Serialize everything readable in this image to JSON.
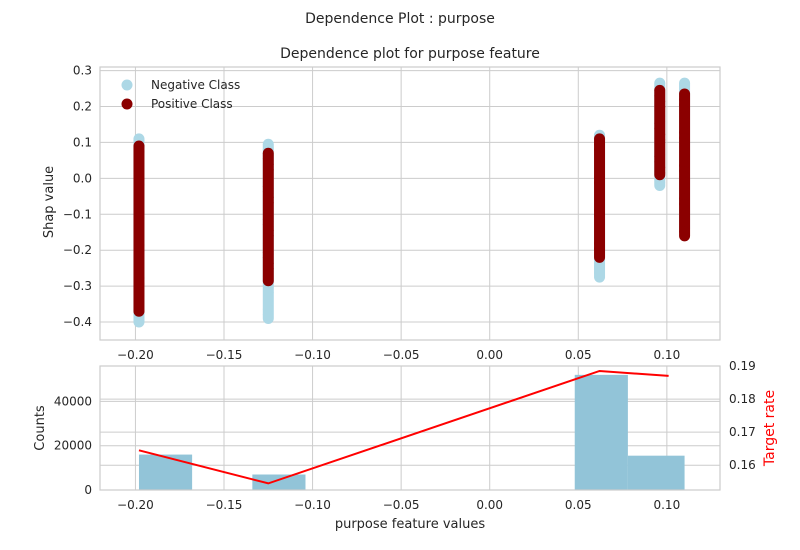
{
  "figure": {
    "suptitle": "Dependence Plot : purpose"
  },
  "chart_data": [
    {
      "type": "scatter",
      "title": "Dependence plot for purpose feature",
      "ylabel": "Shap value",
      "xlim": [
        -0.22,
        0.13
      ],
      "ylim": [
        -0.45,
        0.31
      ],
      "xticks": [
        -0.2,
        -0.15,
        -0.1,
        -0.05,
        0.0,
        0.05,
        0.1
      ],
      "xtick_labels": [
        "−0.20",
        "−0.15",
        "−0.10",
        "−0.05",
        "0.00",
        "0.05",
        "0.10"
      ],
      "yticks": [
        -0.4,
        -0.3,
        -0.2,
        -0.1,
        0.0,
        0.1,
        0.2,
        0.3
      ],
      "ytick_labels": [
        "−0.4",
        "−0.3",
        "−0.2",
        "−0.1",
        "0.0",
        "0.1",
        "0.2",
        "0.3"
      ],
      "grid": true,
      "legend": "top-left",
      "series": [
        {
          "name": "Negative Class",
          "color": "#add8e6",
          "groups": [
            {
              "x": -0.198,
              "ymin": -0.4,
              "ymax": 0.11
            },
            {
              "x": -0.125,
              "ymin": -0.39,
              "ymax": 0.095
            },
            {
              "x": 0.062,
              "ymin": -0.275,
              "ymax": 0.12
            },
            {
              "x": 0.096,
              "ymin": -0.02,
              "ymax": 0.265
            },
            {
              "x": 0.11,
              "ymin": -0.14,
              "ymax": 0.265
            }
          ]
        },
        {
          "name": "Positive Class",
          "color": "#8b0000",
          "groups": [
            {
              "x": -0.198,
              "ymin": -0.37,
              "ymax": 0.09
            },
            {
              "x": -0.125,
              "ymin": -0.285,
              "ymax": 0.07
            },
            {
              "x": 0.062,
              "ymin": -0.22,
              "ymax": 0.11
            },
            {
              "x": 0.096,
              "ymin": 0.01,
              "ymax": 0.245
            },
            {
              "x": 0.11,
              "ymin": -0.16,
              "ymax": 0.235
            }
          ]
        }
      ]
    },
    {
      "type": "bar",
      "xlabel": "purpose feature values",
      "ylabel": "Counts",
      "y2label": "Target rate",
      "xlim": [
        -0.22,
        0.13
      ],
      "ylim": [
        0,
        56000
      ],
      "y2lim": [
        0.1525,
        0.19
      ],
      "xticks": [
        -0.2,
        -0.15,
        -0.1,
        -0.05,
        0.0,
        0.05,
        0.1
      ],
      "xtick_labels": [
        "−0.20",
        "−0.15",
        "−0.10",
        "−0.05",
        "0.00",
        "0.05",
        "0.10"
      ],
      "yticks": [
        0,
        20000,
        40000
      ],
      "ytick_labels": [
        "0",
        "20000",
        "40000"
      ],
      "y2ticks": [
        0.16,
        0.17,
        0.18,
        0.19
      ],
      "y2tick_labels": [
        "0.16",
        "0.17",
        "0.18",
        "0.19"
      ],
      "bar_color": "#92c4d8",
      "line_color": "#ff0000",
      "bins": [
        {
          "x0": -0.198,
          "x1": -0.168,
          "count": 16000
        },
        {
          "x0": -0.134,
          "x1": -0.104,
          "count": 7000
        },
        {
          "x0": 0.048,
          "x1": 0.078,
          "count": 52000
        },
        {
          "x0": 0.078,
          "x1": 0.11,
          "count": 15500
        }
      ],
      "target_rate": {
        "x": [
          -0.198,
          -0.125,
          0.062,
          0.101
        ],
        "y": [
          0.1645,
          0.1545,
          0.1885,
          0.187
        ]
      }
    }
  ]
}
